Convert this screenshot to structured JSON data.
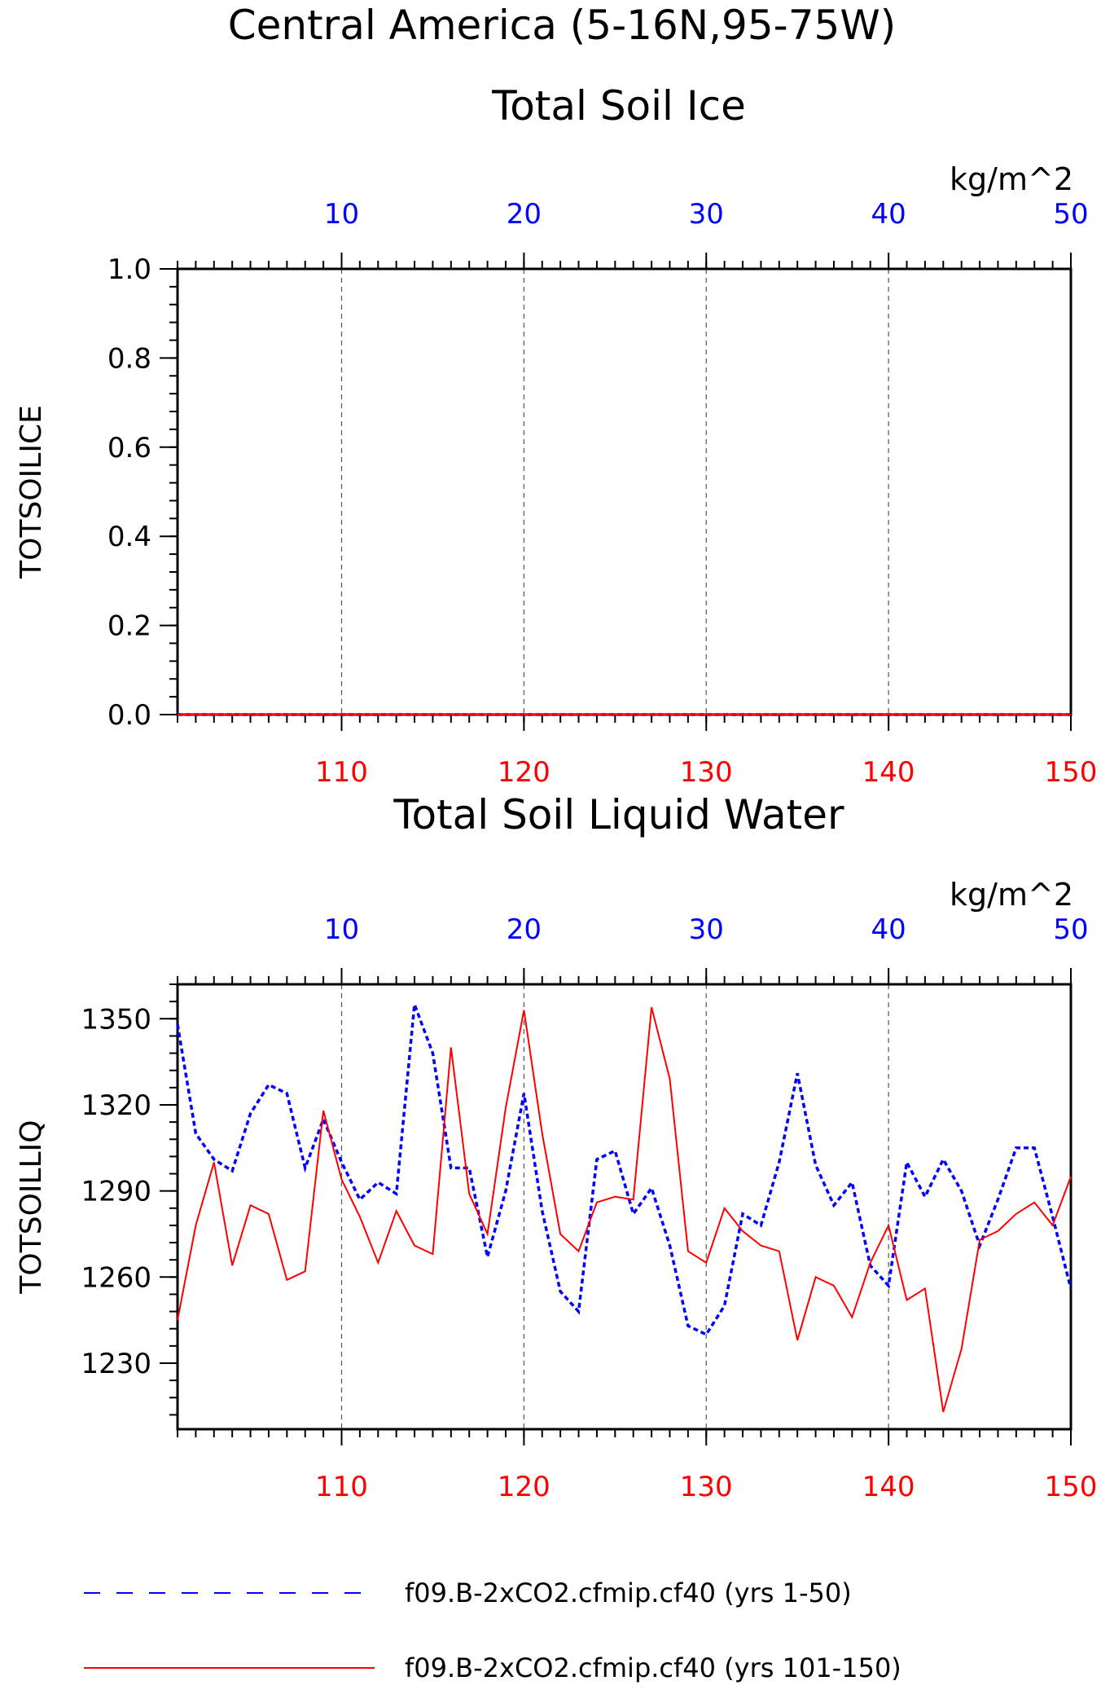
{
  "page": {
    "title": "Central America (5-16N,95-75W)"
  },
  "colors": {
    "top_axis": "#0000ff",
    "bottom_axis": "#ff0000",
    "series_1": "#0000ff",
    "series_2": "#ff0000",
    "frame": "#000000",
    "gridline": "#555555"
  },
  "chart_data": [
    {
      "type": "line",
      "title": "Total Soil Ice",
      "ylabel": "TOTSOILICE",
      "units": "kg/m^2",
      "ylim": [
        0.0,
        1.0
      ],
      "y_ticks": [
        "0.0",
        "0.2",
        "0.4",
        "0.6",
        "0.8",
        "1.0"
      ],
      "top_xlim": [
        1,
        50
      ],
      "top_x_ticks": [
        "10",
        "20",
        "30",
        "40",
        "50"
      ],
      "bottom_xlim": [
        101,
        150
      ],
      "bottom_x_ticks": [
        "110",
        "120",
        "130",
        "140",
        "150"
      ],
      "grid": "dashed vertical at top x ticks",
      "series": [
        {
          "name": "f09.B-2xCO2.cfmip.cf40 (yrs 1-50)",
          "axis": "top",
          "style": "dashed",
          "x_start": 1,
          "values": [
            0,
            0,
            0,
            0,
            0,
            0,
            0,
            0,
            0,
            0,
            0,
            0,
            0,
            0,
            0,
            0,
            0,
            0,
            0,
            0,
            0,
            0,
            0,
            0,
            0,
            0,
            0,
            0,
            0,
            0,
            0,
            0,
            0,
            0,
            0,
            0,
            0,
            0,
            0,
            0,
            0,
            0,
            0,
            0,
            0,
            0,
            0,
            0,
            0,
            0
          ]
        },
        {
          "name": "f09.B-2xCO2.cfmip.cf40 (yrs 101-150)",
          "axis": "bottom",
          "style": "solid",
          "x_start": 101,
          "values": [
            0,
            0,
            0,
            0,
            0,
            0,
            0,
            0,
            0,
            0,
            0,
            0,
            0,
            0,
            0,
            0,
            0,
            0,
            0,
            0,
            0,
            0,
            0,
            0,
            0,
            0,
            0,
            0,
            0,
            0,
            0,
            0,
            0,
            0,
            0,
            0,
            0,
            0,
            0,
            0,
            0,
            0,
            0,
            0,
            0,
            0,
            0,
            0,
            0,
            0
          ]
        }
      ]
    },
    {
      "type": "line",
      "title": "Total Soil Liquid Water",
      "ylabel": "TOTSOILLIQ",
      "units": "kg/m^2",
      "ylim": [
        1207,
        1362
      ],
      "y_ticks": [
        "1230",
        "1260",
        "1290",
        "1320",
        "1350"
      ],
      "top_xlim": [
        1,
        50
      ],
      "top_x_ticks": [
        "10",
        "20",
        "30",
        "40",
        "50"
      ],
      "bottom_xlim": [
        101,
        150
      ],
      "bottom_x_ticks": [
        "110",
        "120",
        "130",
        "140",
        "150"
      ],
      "grid": "dashed vertical at top x ticks",
      "series": [
        {
          "name": "f09.B-2xCO2.cfmip.cf40 (yrs 1-50)",
          "axis": "top",
          "style": "dashed",
          "x_start": 1,
          "values": [
            1348,
            1310,
            1301,
            1297,
            1317,
            1327,
            1324,
            1298,
            1315,
            1300,
            1287,
            1293,
            1289,
            1355,
            1338,
            1298,
            1298,
            1267,
            1290,
            1324,
            1283,
            1255,
            1248,
            1301,
            1304,
            1282,
            1291,
            1271,
            1243,
            1240,
            1250,
            1282,
            1278,
            1300,
            1331,
            1299,
            1285,
            1293,
            1264,
            1257,
            1300,
            1288,
            1301,
            1290,
            1271,
            1287,
            1305,
            1305,
            1281,
            1256
          ]
        },
        {
          "name": "f09.B-2xCO2.cfmip.cf40 (yrs 101-150)",
          "axis": "bottom",
          "style": "solid",
          "x_start": 101,
          "values": [
            1245,
            1278,
            1300,
            1264,
            1285,
            1282,
            1259,
            1262,
            1318,
            1294,
            1281,
            1265,
            1283,
            1271,
            1268,
            1340,
            1289,
            1275,
            1319,
            1353,
            1310,
            1275,
            1269,
            1286,
            1288,
            1287,
            1354,
            1329,
            1269,
            1265,
            1284,
            1276,
            1271,
            1269,
            1238,
            1260,
            1257,
            1246,
            1265,
            1278,
            1252,
            1256,
            1213,
            1235,
            1273,
            1276,
            1282,
            1286,
            1278,
            1295
          ]
        }
      ]
    }
  ],
  "legend": {
    "items": [
      {
        "label": "f09.B-2xCO2.cfmip.cf40 (yrs 1-50)",
        "style": "dashed",
        "color": "#0000ff"
      },
      {
        "label": "f09.B-2xCO2.cfmip.cf40 (yrs 101-150)",
        "style": "solid",
        "color": "#ff0000"
      }
    ]
  }
}
